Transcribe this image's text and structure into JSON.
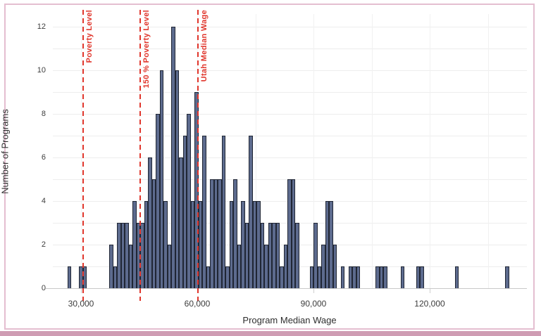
{
  "chart_data": {
    "type": "bar",
    "subtype": "histogram",
    "xlabel": "Program Median Wage",
    "ylabel": "Number of Programs",
    "x_axis": {
      "tick_labels": [
        "30,000",
        "60,000",
        "90,000",
        "120,000"
      ],
      "tick_values": [
        30000,
        60000,
        90000,
        120000
      ],
      "gridline_values": [
        30000,
        45000,
        60000,
        75000,
        90000,
        105000,
        120000,
        135000
      ],
      "range": [
        22700,
        145000
      ]
    },
    "y_axis": {
      "tick_labels": [
        "0",
        "2",
        "4",
        "6",
        "8",
        "10",
        "12"
      ],
      "tick_values": [
        0,
        2,
        4,
        6,
        8,
        10,
        12
      ],
      "gridline_step": 1,
      "range": [
        0,
        12.6
      ]
    },
    "bin_width": 1000,
    "bars": [
      [
        26500,
        1
      ],
      [
        29500,
        1
      ],
      [
        30500,
        1
      ],
      [
        37300,
        2
      ],
      [
        38300,
        1
      ],
      [
        39300,
        3
      ],
      [
        40300,
        3
      ],
      [
        41300,
        3
      ],
      [
        42300,
        2
      ],
      [
        43300,
        4
      ],
      [
        44300,
        3
      ],
      [
        45300,
        3
      ],
      [
        46300,
        4
      ],
      [
        47300,
        6
      ],
      [
        48300,
        5
      ],
      [
        49300,
        8
      ],
      [
        50300,
        10
      ],
      [
        51300,
        4
      ],
      [
        52300,
        2
      ],
      [
        53300,
        12
      ],
      [
        54300,
        10
      ],
      [
        55300,
        6
      ],
      [
        56300,
        7
      ],
      [
        57300,
        8
      ],
      [
        58300,
        4
      ],
      [
        59300,
        9
      ],
      [
        60300,
        4
      ],
      [
        61300,
        7
      ],
      [
        62300,
        1
      ],
      [
        63300,
        5
      ],
      [
        64300,
        5
      ],
      [
        65300,
        5
      ],
      [
        66300,
        7
      ],
      [
        67300,
        1
      ],
      [
        68300,
        4
      ],
      [
        69300,
        5
      ],
      [
        70300,
        2
      ],
      [
        71300,
        4
      ],
      [
        72300,
        3
      ],
      [
        73300,
        7
      ],
      [
        74300,
        4
      ],
      [
        75300,
        4
      ],
      [
        76300,
        3
      ],
      [
        77300,
        2
      ],
      [
        78300,
        3
      ],
      [
        79300,
        3
      ],
      [
        80300,
        3
      ],
      [
        81300,
        1
      ],
      [
        82300,
        2
      ],
      [
        83300,
        5
      ],
      [
        84300,
        5
      ],
      [
        85300,
        3
      ],
      [
        89000,
        1
      ],
      [
        90000,
        3
      ],
      [
        91000,
        1
      ],
      [
        92000,
        2
      ],
      [
        93000,
        4
      ],
      [
        94000,
        4
      ],
      [
        95000,
        2
      ],
      [
        97000,
        1
      ],
      [
        99000,
        1
      ],
      [
        100000,
        1
      ],
      [
        101000,
        1
      ],
      [
        106000,
        1
      ],
      [
        107000,
        1
      ],
      [
        108000,
        1
      ],
      [
        112500,
        1
      ],
      [
        116500,
        1
      ],
      [
        117500,
        1
      ],
      [
        126500,
        1
      ],
      [
        139500,
        1
      ]
    ],
    "reference_lines": [
      {
        "label": "Poverty Level",
        "wage": 30500
      },
      {
        "label": "150 % Poverty Level",
        "wage": 45200
      },
      {
        "label": "Utah Median Wage",
        "wage": 60200
      }
    ]
  },
  "style": {
    "bar_fill": "#5d6b8e",
    "bar_border": "#202634",
    "ref_line_color": "#e0362c",
    "frame_border": "#e4bed0",
    "bottom_band": "#cf9cb3",
    "grid_color": "#ededed",
    "axis_color": "#c8c8c8",
    "text_color": "#3c3c3c"
  }
}
